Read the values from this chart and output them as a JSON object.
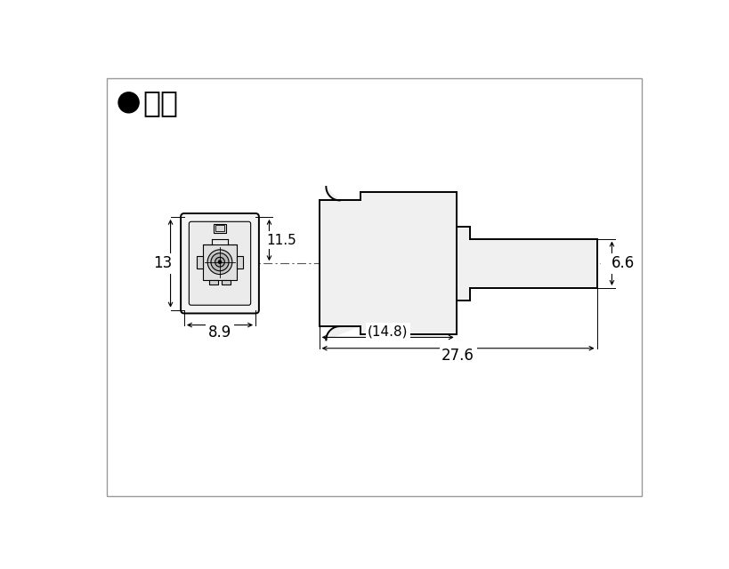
{
  "bg_color": "#ffffff",
  "line_color": "#000000",
  "border_color": "#888888",
  "title_text": "●寸法",
  "dim_13": "13",
  "dim_11_5": "11.5",
  "dim_8_9": "8.9",
  "dim_14_8": "(14.8)",
  "dim_27_6": "27.6",
  "dim_6_6": "6.6",
  "lw_thick": 1.4,
  "lw_thin": 0.8,
  "lw_dim": 0.8
}
